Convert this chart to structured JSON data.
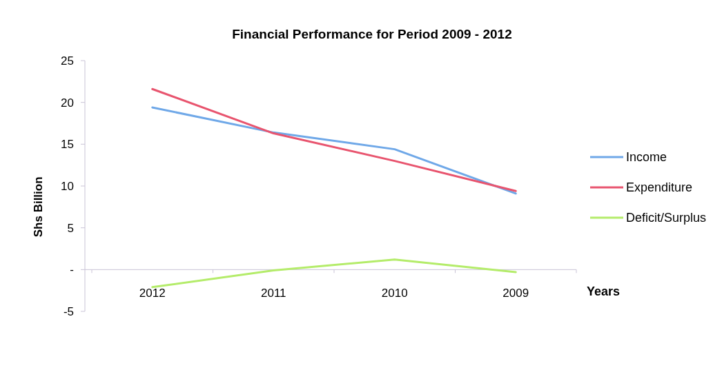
{
  "chart_data": {
    "type": "line",
    "title": "Financial Performance for Period 2009 - 2012",
    "xlabel": "Years",
    "ylabel": "Shs Billion",
    "categories": [
      "2012",
      "2011",
      "2010",
      "2009"
    ],
    "series": [
      {
        "name": "Income",
        "color": "#6fa8e8",
        "values": [
          19.4,
          16.4,
          14.4,
          9.1
        ]
      },
      {
        "name": "Expenditure",
        "color": "#e8546e",
        "values": [
          21.6,
          16.3,
          13.0,
          9.4
        ]
      },
      {
        "name": "Deficit/Surplus",
        "color": "#b4ec6a",
        "values": [
          -2.1,
          -0.1,
          1.2,
          -0.3
        ]
      }
    ],
    "ylim": [
      -5,
      25
    ],
    "yticks": [
      -5,
      {
        "value": 0,
        "label": "-"
      },
      5,
      10,
      15,
      20,
      25
    ],
    "grid": false,
    "legend": "right",
    "line_style": "solid"
  }
}
